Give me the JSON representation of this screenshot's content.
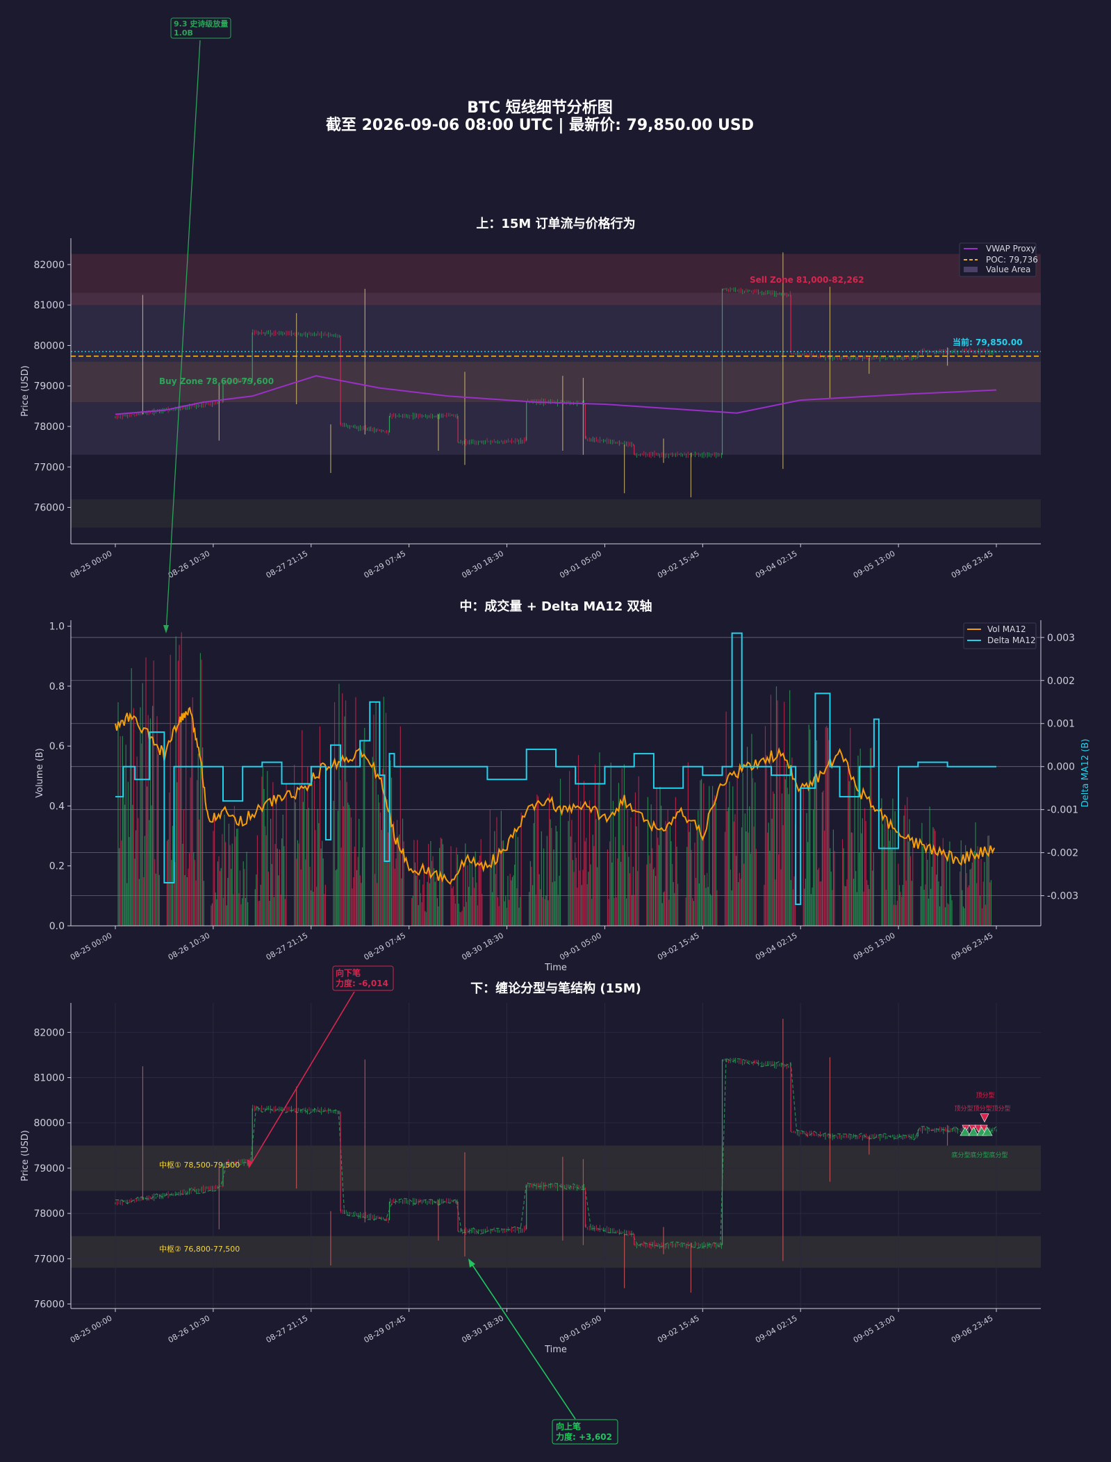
{
  "figure": {
    "title_line1": "BTC 短线细节分析图",
    "title_line2": "截至 2026-09-06 08:00 UTC | 最新价: 79,850.00 USD"
  },
  "colors": {
    "background": "#1b1a2e",
    "up": "#2ea35a",
    "down": "#d7264e",
    "vwap": "#9b30c8",
    "poc": "#f0b429",
    "current": "#22d3ee",
    "vol_ma": "#f59e0b",
    "delta_ma": "#22d3ee",
    "zone_text": "#f5d742"
  },
  "top_panel": {
    "title": "上：15M 订单流与价格行为",
    "ylabel": "Price (USD)",
    "legend": [
      "VWAP Proxy",
      "POC: 79,736",
      "Value Area"
    ],
    "sell_zone_label": "Sell Zone 81,000-82,262",
    "buy_zone_label": "Buy Zone 78,600-79,600",
    "current_label": "当前: 79,850.00"
  },
  "mid_panel": {
    "title": "中：成交量 + Delta MA12 双轴",
    "ylabel_left": "Volume (B)",
    "ylabel_right": "Delta MA12 (B)",
    "xlabel": "Time",
    "legend": [
      "Vol MA12",
      "Delta MA12"
    ],
    "peak_annotation_line1": "9.3 史诗级放量",
    "peak_annotation_line2": "1.0B"
  },
  "bottom_panel": {
    "title": "下：缠论分型与笔结构 (15M)",
    "ylabel": "Price (USD)",
    "xlabel": "Time",
    "zone1_label": "中枢① 78,500-79,500",
    "zone2_label": "中枢② 76,800-77,500",
    "down_stroke_line1": "向下笔",
    "down_stroke_line2": "力度: -6,014",
    "up_stroke_line1": "向上笔",
    "up_stroke_line2": "力度: +3,602",
    "top_fractal_label": "顶分型",
    "top_fractal_stack": "顶分型顶分型顶分型",
    "bottom_fractal_stack": "底分型底分型底分型"
  },
  "chart_data": [
    {
      "type": "candlestick",
      "title": "上：15M 订单流与价格行为",
      "ylabel": "Price (USD)",
      "ylim": [
        75100,
        82650
      ],
      "yticks": [
        76000,
        77000,
        78000,
        79000,
        80000,
        81000,
        82000
      ],
      "x_tick_labels": [
        "08-25 00:00",
        "08-26 10:30",
        "08-27 21:15",
        "08-29 07:45",
        "08-30 18:30",
        "09-01 05:00",
        "09-02 15:45",
        "09-04 02:15",
        "09-05 13:00",
        "09-06 23:45"
      ],
      "price_segments": [
        {
          "x": [
            0.0,
            1.1
          ],
          "y": [
            78230,
            78600
          ]
        },
        {
          "x": [
            1.1,
            1.4
          ],
          "y": [
            79100,
            79150
          ]
        },
        {
          "x": [
            1.4,
            2.3
          ],
          "y": [
            80320,
            80250
          ]
        },
        {
          "x": [
            2.3,
            2.8
          ],
          "y": [
            78050,
            77850
          ]
        },
        {
          "x": [
            2.8,
            3.5
          ],
          "y": [
            78260,
            78260
          ]
        },
        {
          "x": [
            3.5,
            4.2
          ],
          "y": [
            77600,
            77650
          ]
        },
        {
          "x": [
            4.2,
            4.8
          ],
          "y": [
            78620,
            78570
          ]
        },
        {
          "x": [
            4.8,
            5.3
          ],
          "y": [
            77700,
            77550
          ]
        },
        {
          "x": [
            5.3,
            6.2
          ],
          "y": [
            77300,
            77300
          ]
        },
        {
          "x": [
            6.2,
            6.9
          ],
          "y": [
            81400,
            81250
          ]
        },
        {
          "x": [
            6.9,
            7.3
          ],
          "y": [
            79800,
            79700
          ]
        },
        {
          "x": [
            7.3,
            8.2
          ],
          "y": [
            79700,
            79700
          ]
        },
        {
          "x": [
            8.2,
            9.0
          ],
          "y": [
            79850,
            79850
          ]
        }
      ],
      "wicks": [
        {
          "x": 0.28,
          "low": 78300,
          "high": 81250
        },
        {
          "x": 1.06,
          "low": 77650,
          "high": 79050
        },
        {
          "x": 1.85,
          "low": 78550,
          "high": 80800
        },
        {
          "x": 2.2,
          "low": 76850,
          "high": 78050
        },
        {
          "x": 2.55,
          "low": 77800,
          "high": 81400
        },
        {
          "x": 3.3,
          "low": 77400,
          "high": 78300
        },
        {
          "x": 3.57,
          "low": 77050,
          "high": 79350
        },
        {
          "x": 4.57,
          "low": 77400,
          "high": 79250
        },
        {
          "x": 4.78,
          "low": 77300,
          "high": 79200
        },
        {
          "x": 5.2,
          "low": 76350,
          "high": 77550
        },
        {
          "x": 5.6,
          "low": 77100,
          "high": 77700
        },
        {
          "x": 5.88,
          "low": 76250,
          "high": 77350
        },
        {
          "x": 6.82,
          "low": 76950,
          "high": 82300
        },
        {
          "x": 7.3,
          "low": 78700,
          "high": 81450
        },
        {
          "x": 7.7,
          "low": 79300,
          "high": 79700
        },
        {
          "x": 8.5,
          "low": 79500,
          "high": 79950
        }
      ],
      "vwap_proxy": {
        "x": [
          0.0,
          0.5,
          0.9,
          1.4,
          2.05,
          2.7,
          3.4,
          4.3,
          5.0,
          6.35,
          7.0,
          8.1,
          9.0
        ],
        "y": [
          78300,
          78400,
          78600,
          78750,
          79250,
          78950,
          78750,
          78600,
          78550,
          78330,
          78650,
          78800,
          78900
        ]
      },
      "poc": 79736,
      "current_price": 79850.0,
      "bands": [
        {
          "from": 81000,
          "to": 82262,
          "label": "Sell Zone 81,000-82,262"
        },
        {
          "from": 78600,
          "to": 79600,
          "label": "Buy Zone 78,600-79,600"
        },
        {
          "from": 77300,
          "to": 81300,
          "label": "Value Area"
        },
        {
          "from": 75500,
          "to": 76200
        }
      ]
    },
    {
      "type": "bar",
      "title": "中：成交量 + Delta MA12 双轴",
      "ylabel_left": "Volume (B)",
      "ylabel_right": "Delta MA12 (B)",
      "xlabel": "Time",
      "ylim_left": [
        0.0,
        1.02
      ],
      "ylim_right": [
        -0.0037,
        0.0034
      ],
      "yticks_left": [
        0.0,
        0.2,
        0.4,
        0.6,
        0.8,
        1.0
      ],
      "yticks_right": [
        -0.003,
        -0.002,
        -0.001,
        0.0,
        0.001,
        0.002,
        0.003
      ],
      "volume_clusters": [
        {
          "x": [
            0.0,
            0.5
          ],
          "peak": 0.95
        },
        {
          "x": [
            0.5,
            0.95
          ],
          "peak": 1.0
        },
        {
          "x": [
            0.95,
            1.4
          ],
          "peak": 0.45
        },
        {
          "x": [
            1.4,
            1.8
          ],
          "peak": 0.55
        },
        {
          "x": [
            1.8,
            2.2
          ],
          "peak": 0.7
        },
        {
          "x": [
            2.2,
            2.6
          ],
          "peak": 0.82
        },
        {
          "x": [
            2.6,
            3.0
          ],
          "peak": 0.8
        },
        {
          "x": [
            3.0,
            3.4
          ],
          "peak": 0.3
        },
        {
          "x": [
            3.4,
            3.8
          ],
          "peak": 0.3
        },
        {
          "x": [
            3.8,
            4.2
          ],
          "peak": 0.4
        },
        {
          "x": [
            4.2,
            4.6
          ],
          "peak": 0.5
        },
        {
          "x": [
            4.6,
            5.0
          ],
          "peak": 0.6
        },
        {
          "x": [
            5.0,
            5.4
          ],
          "peak": 0.55
        },
        {
          "x": [
            5.4,
            5.8
          ],
          "peak": 0.5
        },
        {
          "x": [
            5.8,
            6.2
          ],
          "peak": 0.55
        },
        {
          "x": [
            6.2,
            6.6
          ],
          "peak": 0.75
        },
        {
          "x": [
            6.6,
            7.0
          ],
          "peak": 0.8
        },
        {
          "x": [
            7.0,
            7.4
          ],
          "peak": 0.7
        },
        {
          "x": [
            7.4,
            7.8
          ],
          "peak": 0.75
        },
        {
          "x": [
            7.8,
            8.2
          ],
          "peak": 0.45
        },
        {
          "x": [
            8.2,
            8.6
          ],
          "peak": 0.4
        },
        {
          "x": [
            8.6,
            9.0
          ],
          "peak": 0.38
        }
      ],
      "vol_ma12": {
        "x": [
          0.0,
          0.15,
          0.35,
          0.5,
          0.65,
          0.75,
          0.85,
          0.95,
          1.1,
          1.3,
          1.5,
          1.7,
          1.9,
          2.1,
          2.3,
          2.5,
          2.7,
          2.85,
          3.0,
          3.2,
          3.4,
          3.6,
          3.8,
          4.0,
          4.2,
          4.4,
          4.6,
          4.8,
          5.0,
          5.2,
          5.4,
          5.6,
          5.8,
          6.0,
          6.2,
          6.4,
          6.6,
          6.8,
          7.0,
          7.2,
          7.4,
          7.6,
          7.8,
          8.0,
          8.2,
          8.4,
          8.6,
          8.8,
          9.0
        ],
        "y": [
          0.66,
          0.7,
          0.63,
          0.57,
          0.68,
          0.72,
          0.6,
          0.36,
          0.38,
          0.35,
          0.4,
          0.43,
          0.45,
          0.52,
          0.55,
          0.58,
          0.5,
          0.3,
          0.2,
          0.18,
          0.15,
          0.22,
          0.2,
          0.26,
          0.38,
          0.42,
          0.38,
          0.4,
          0.36,
          0.42,
          0.35,
          0.32,
          0.38,
          0.3,
          0.48,
          0.52,
          0.55,
          0.58,
          0.45,
          0.5,
          0.58,
          0.45,
          0.38,
          0.3,
          0.27,
          0.25,
          0.22,
          0.24,
          0.26
        ]
      },
      "delta_ma12": {
        "x": [
          0.0,
          0.08,
          0.2,
          0.35,
          0.5,
          0.6,
          0.8,
          1.0,
          1.1,
          1.3,
          1.5,
          1.7,
          2.0,
          2.15,
          2.2,
          2.3,
          2.5,
          2.6,
          2.7,
          2.75,
          2.8,
          2.85,
          3.0,
          3.5,
          3.8,
          4.2,
          4.5,
          4.7,
          5.0,
          5.3,
          5.5,
          5.8,
          6.0,
          6.2,
          6.3,
          6.35,
          6.4,
          6.5,
          6.7,
          6.9,
          6.95,
          7.0,
          7.15,
          7.3,
          7.4,
          7.6,
          7.75,
          7.8,
          8.0,
          8.2,
          8.5,
          8.8,
          9.0
        ],
        "y": [
          -0.0007,
          0.0,
          -0.0003,
          0.0008,
          -0.0027,
          0.0,
          0.0,
          0.0,
          -0.0008,
          0.0,
          0.0001,
          -0.0004,
          0.0,
          -0.0017,
          0.0005,
          0.0,
          0.0006,
          0.0015,
          -0.0002,
          -0.0022,
          0.0003,
          0.0,
          0.0,
          0.0,
          -0.0003,
          0.0004,
          0.0,
          -0.0004,
          0.0,
          0.0003,
          -0.0005,
          0.0,
          -0.0002,
          0.0,
          0.0031,
          0.0031,
          0.0,
          0.0,
          -0.0002,
          0.0,
          -0.0032,
          -0.0005,
          0.0017,
          0.0,
          -0.0007,
          0.0,
          0.0011,
          -0.0019,
          0.0,
          0.0001,
          0.0,
          0.0,
          0.0
        ]
      },
      "peak_annotation": "9.3 史诗级放量 1.0B"
    },
    {
      "type": "line",
      "title": "下：缠论分型与笔结构 (15M)",
      "ylabel": "Price (USD)",
      "xlabel": "Time",
      "ylim": [
        75900,
        82650
      ],
      "yticks": [
        76000,
        77000,
        78000,
        79000,
        80000,
        81000,
        82000
      ],
      "x_tick_labels": [
        "08-25 00:00",
        "08-26 10:30",
        "08-27 21:15",
        "08-29 07:45",
        "08-30 18:30",
        "09-01 05:00",
        "09-02 15:45",
        "09-04 02:15",
        "09-05 13:00",
        "09-06 23:45"
      ],
      "bands": [
        {
          "from": 78500,
          "to": 79500,
          "label": "中枢① 78,500-79,500"
        },
        {
          "from": 76800,
          "to": 77500,
          "label": "中枢② 76,800-77,500"
        }
      ],
      "strokes": [
        {
          "direction": "down",
          "strength": -6014
        },
        {
          "direction": "up",
          "strength": 3602
        }
      ]
    }
  ]
}
